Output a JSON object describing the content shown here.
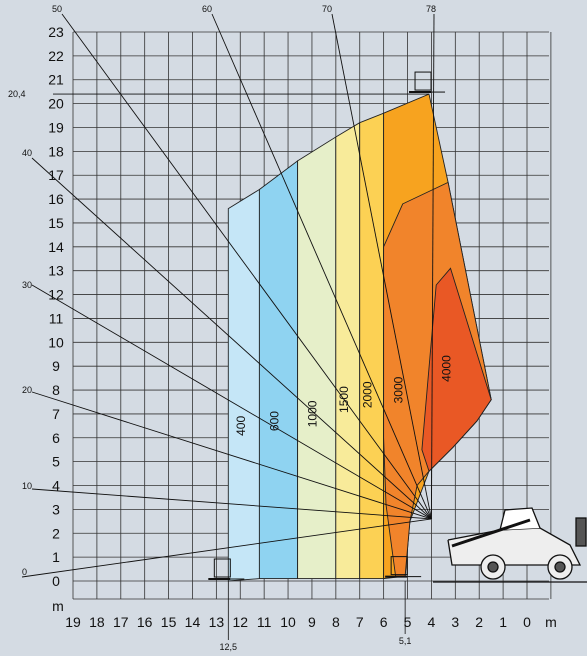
{
  "chart_data": {
    "type": "area",
    "title": "",
    "xlabel": "m",
    "ylabel": "m",
    "x_direction": "reversed",
    "xlim": [
      0,
      19
    ],
    "ylim": [
      0,
      23
    ],
    "grid": true,
    "x_ticks": [
      "19",
      "18",
      "17",
      "16",
      "15",
      "14",
      "13",
      "12",
      "11",
      "10",
      "9",
      "8",
      "7",
      "6",
      "5",
      "4",
      "3",
      "2",
      "1",
      "0"
    ],
    "y_ticks": [
      "0",
      "1",
      "2",
      "3",
      "4",
      "5",
      "6",
      "7",
      "8",
      "9",
      "10",
      "11",
      "12",
      "13",
      "14",
      "15",
      "16",
      "17",
      "18",
      "19",
      "20",
      "21",
      "22",
      "23"
    ],
    "boom_angle_labels": [
      "0",
      "10",
      "20",
      "30",
      "40",
      "50",
      "60",
      "70",
      "78"
    ],
    "reference_labels": {
      "max_height": "20,4",
      "max_reach": "12,5",
      "min_reach": "5,1"
    },
    "series": [
      {
        "name": "400",
        "color": "#c5e6f7",
        "zone": [
          [
            12.5,
            15.6
          ],
          [
            11.2,
            16.4
          ],
          [
            11.2,
            0.1
          ],
          [
            12.5,
            0.0
          ]
        ]
      },
      {
        "name": "600",
        "color": "#8fd3f1",
        "zone": [
          [
            11.2,
            16.4
          ],
          [
            9.6,
            17.6
          ],
          [
            9.6,
            0.1
          ],
          [
            11.2,
            0.1
          ]
        ]
      },
      {
        "name": "1000",
        "color": "#e6efc9",
        "zone": [
          [
            9.6,
            17.6
          ],
          [
            8.0,
            18.6
          ],
          [
            8.0,
            0.1
          ],
          [
            9.6,
            0.1
          ]
        ]
      },
      {
        "name": "1500",
        "color": "#f8eb9a",
        "zone": [
          [
            8.0,
            18.6
          ],
          [
            7.0,
            19.2
          ],
          [
            7.0,
            0.1
          ],
          [
            8.0,
            0.1
          ]
        ]
      },
      {
        "name": "2000",
        "color": "#fcd154",
        "zone": [
          [
            7.0,
            19.2
          ],
          [
            6.0,
            19.6
          ],
          [
            6.0,
            0.1
          ],
          [
            7.0,
            0.1
          ]
        ]
      },
      {
        "name": "3000",
        "color": "#f7a31f",
        "zone": [
          [
            6.0,
            19.6
          ],
          [
            4.1,
            20.4
          ],
          [
            3.3,
            16.7
          ],
          [
            1.5,
            7.6
          ],
          [
            2.1,
            6.7
          ],
          [
            3.1,
            5.6
          ],
          [
            4.1,
            4.6
          ],
          [
            4.9,
            2.5
          ],
          [
            5.1,
            0.2
          ],
          [
            6.0,
            0.1
          ]
        ]
      },
      {
        "name": "4000",
        "color": "#e95825",
        "zone": [
          [
            3.2,
            13.1
          ],
          [
            1.5,
            7.6
          ],
          [
            2.1,
            6.7
          ],
          [
            3.1,
            5.6
          ],
          [
            4.1,
            4.6
          ],
          [
            4.4,
            5.4
          ],
          [
            3.8,
            12.4
          ]
        ]
      }
    ],
    "zone_boundaries": {
      "band_3000": [
        [
          6.0,
          14.0
        ],
        [
          5.2,
          15.8
        ],
        [
          3.3,
          16.7
        ],
        [
          1.5,
          7.6
        ],
        [
          2.1,
          6.7
        ],
        [
          3.1,
          5.6
        ],
        [
          4.1,
          4.6
        ],
        [
          4.6,
          4.0
        ],
        [
          4.9,
          2.5
        ],
        [
          5.1,
          0.2
        ],
        [
          5.5,
          0.2
        ],
        [
          5.9,
          3.2
        ],
        [
          6.0,
          6.0
        ]
      ],
      "band_4000": [
        [
          3.2,
          13.1
        ],
        [
          1.5,
          7.6
        ],
        [
          2.1,
          6.7
        ],
        [
          3.1,
          5.6
        ],
        [
          4.1,
          4.6
        ],
        [
          4.4,
          5.5
        ],
        [
          3.8,
          12.4
        ]
      ]
    }
  }
}
